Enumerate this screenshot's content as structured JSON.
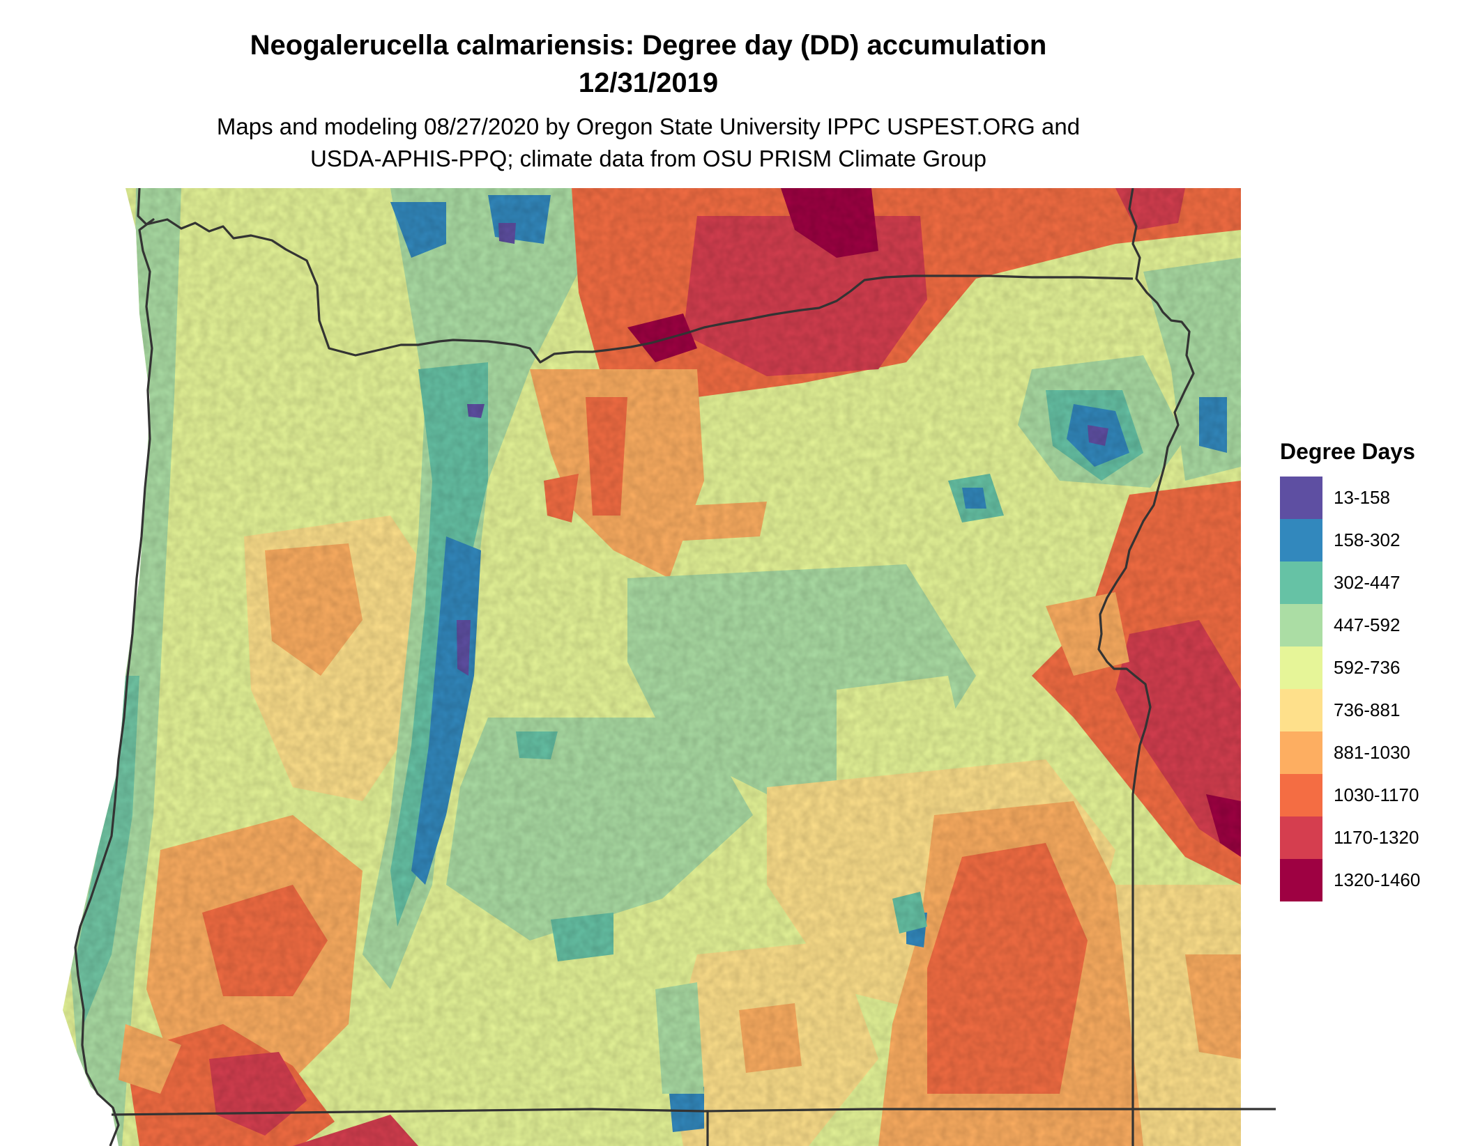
{
  "title": {
    "line1": "Neogalerucella calmariensis: Degree day (DD) accumulation",
    "line2": "12/31/2019"
  },
  "subtitle": {
    "line1": "Maps and modeling 08/27/2020 by Oregon State University IPPC USPEST.ORG and",
    "line2": "USDA-APHIS-PPQ; climate data from OSU PRISM Climate Group"
  },
  "legend": {
    "title": "Degree Days",
    "items": [
      {
        "label": "13-158",
        "color": "#5e4fa2"
      },
      {
        "label": "158-302",
        "color": "#3288bd"
      },
      {
        "label": "302-447",
        "color": "#66c2a5"
      },
      {
        "label": "447-592",
        "color": "#abdda4"
      },
      {
        "label": "592-736",
        "color": "#e6f598"
      },
      {
        "label": "736-881",
        "color": "#fee08b"
      },
      {
        "label": "881-1030",
        "color": "#fdae61"
      },
      {
        "label": "1030-1170",
        "color": "#f46d43"
      },
      {
        "label": "1170-1320",
        "color": "#d53e4f"
      },
      {
        "label": "1320-1460",
        "color": "#9e0142"
      }
    ]
  },
  "map": {
    "region": "Oregon",
    "border_color": "#333333"
  }
}
